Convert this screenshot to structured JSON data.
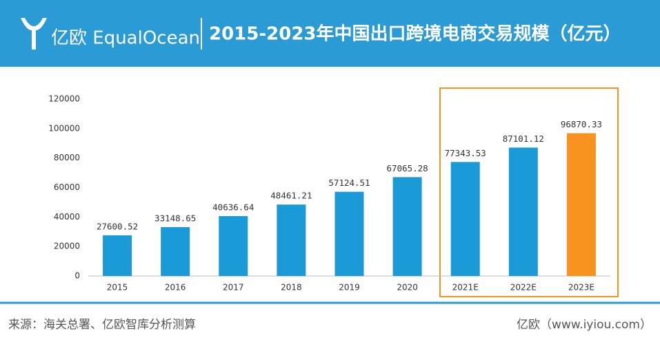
{
  "header": {
    "logo": "亿欧 EqualOcean"
  },
  "chart_data": {
    "type": "bar",
    "title": "2015-2023年中国出口跨境电商交易规模（亿元）",
    "categories": [
      "2015",
      "2016",
      "2017",
      "2018",
      "2019",
      "2020",
      "2021E",
      "2022E",
      "2023E"
    ],
    "values": [
      27600.52,
      33148.65,
      40636.64,
      48461.21,
      57124.51,
      67065.28,
      77343.53,
      87101.12,
      96870.33
    ],
    "colors": [
      "#1a9ad6",
      "#1a9ad6",
      "#1a9ad6",
      "#1a9ad6",
      "#1a9ad6",
      "#1a9ad6",
      "#1a9ad6",
      "#1a9ad6",
      "#f7931e"
    ],
    "ylim": [
      0,
      120000
    ],
    "yticks": [
      0,
      20000,
      40000,
      60000,
      80000,
      100000,
      120000
    ],
    "grid": false
  },
  "footer": {
    "source": "来源：海关总署、亿欧智库分析测算",
    "site": "亿欧（www.iyiou.com）"
  }
}
